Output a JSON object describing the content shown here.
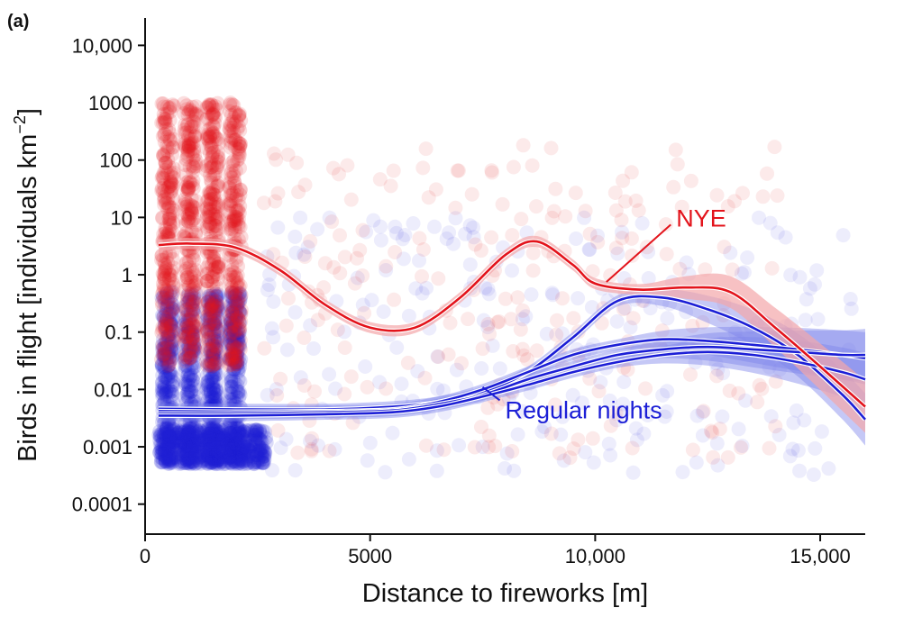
{
  "panel_label": "(a)",
  "colors": {
    "nye": "#e3131b",
    "regular": "#1c1fd6",
    "nye_band": "#f4a7a9",
    "regular_band": "#7e84ea"
  },
  "chart_data": {
    "type": "scatter",
    "xlabel": "Distance to fireworks [m]",
    "ylabel": "Birds in flight [individuals km",
    "ylabel_sup": "−2",
    "ylabel_end": "]",
    "xlim": [
      0,
      16000
    ],
    "ylim": [
      3e-05,
      30000
    ],
    "yscale": "log",
    "x_ticks": [
      0,
      5000,
      10000,
      15000
    ],
    "x_tick_labels": [
      "0",
      "5000",
      "10,000",
      "15,000"
    ],
    "y_ticks": [
      0.0001,
      0.001,
      0.01,
      0.1,
      1,
      10,
      100,
      1000,
      10000
    ],
    "y_tick_labels": [
      "0.0001",
      "0.001",
      "0.01",
      "0.1",
      "1",
      "10",
      "100",
      "1000",
      "10,000"
    ],
    "grid": false,
    "series": [
      {
        "name": "NYE",
        "kind": "smooth",
        "x": [
          300,
          1000,
          2000,
          3000,
          4000,
          5000,
          6000,
          7000,
          8000,
          8700,
          9500,
          10000,
          11000,
          12000,
          13000,
          14000,
          15000,
          16000
        ],
        "y": [
          3.3,
          3.5,
          3.0,
          1.2,
          0.3,
          0.12,
          0.12,
          0.4,
          2.2,
          3.8,
          1.5,
          0.7,
          0.55,
          0.6,
          0.5,
          0.12,
          0.025,
          0.005
        ]
      },
      {
        "name": "Regular nights",
        "kind": "smooth",
        "lines": [
          {
            "x": [
              300,
              2000,
              4000,
              5500,
              6500,
              7500,
              8500,
              9500,
              10500,
              11500,
              12500,
              13500,
              14500,
              15500,
              16000
            ],
            "y": [
              0.0046,
              0.0045,
              0.0045,
              0.005,
              0.006,
              0.009,
              0.02,
              0.08,
              0.35,
              0.4,
              0.25,
              0.12,
              0.04,
              0.008,
              0.003
            ]
          },
          {
            "x": [
              300,
              2000,
              4000,
              5500,
              6500,
              7500,
              8500,
              9500,
              10500,
              11500,
              12500,
              13500,
              14500,
              15500,
              16000
            ],
            "y": [
              0.0042,
              0.0041,
              0.0042,
              0.0045,
              0.006,
              0.01,
              0.02,
              0.04,
              0.06,
              0.075,
              0.07,
              0.06,
              0.05,
              0.04,
              0.035
            ]
          },
          {
            "x": [
              300,
              2000,
              4000,
              5500,
              6500,
              7500,
              8500,
              9500,
              10500,
              11500,
              12500,
              13500,
              14500,
              15500,
              16000
            ],
            "y": [
              0.0038,
              0.0038,
              0.004,
              0.0043,
              0.0055,
              0.008,
              0.015,
              0.025,
              0.04,
              0.05,
              0.055,
              0.05,
              0.045,
              0.04,
              0.04
            ]
          },
          {
            "x": [
              300,
              2000,
              4000,
              5500,
              6500,
              7500,
              8500,
              9500,
              10500,
              11500,
              12500,
              13500,
              14500,
              15500,
              16000
            ],
            "y": [
              0.0035,
              0.0035,
              0.0037,
              0.004,
              0.005,
              0.0075,
              0.012,
              0.02,
              0.03,
              0.04,
              0.045,
              0.04,
              0.03,
              0.02,
              0.015
            ]
          }
        ]
      }
    ],
    "annotations": [
      {
        "text": "NYE",
        "series": "NYE",
        "at_x": 11800,
        "at_y": 10,
        "point_x": 10250,
        "point_y": 0.75
      },
      {
        "text": "Regular nights",
        "series": "Regular nights",
        "at_x": 8000,
        "at_y": 0.0045,
        "point_x": 7500,
        "point_y": 0.011
      }
    ]
  }
}
